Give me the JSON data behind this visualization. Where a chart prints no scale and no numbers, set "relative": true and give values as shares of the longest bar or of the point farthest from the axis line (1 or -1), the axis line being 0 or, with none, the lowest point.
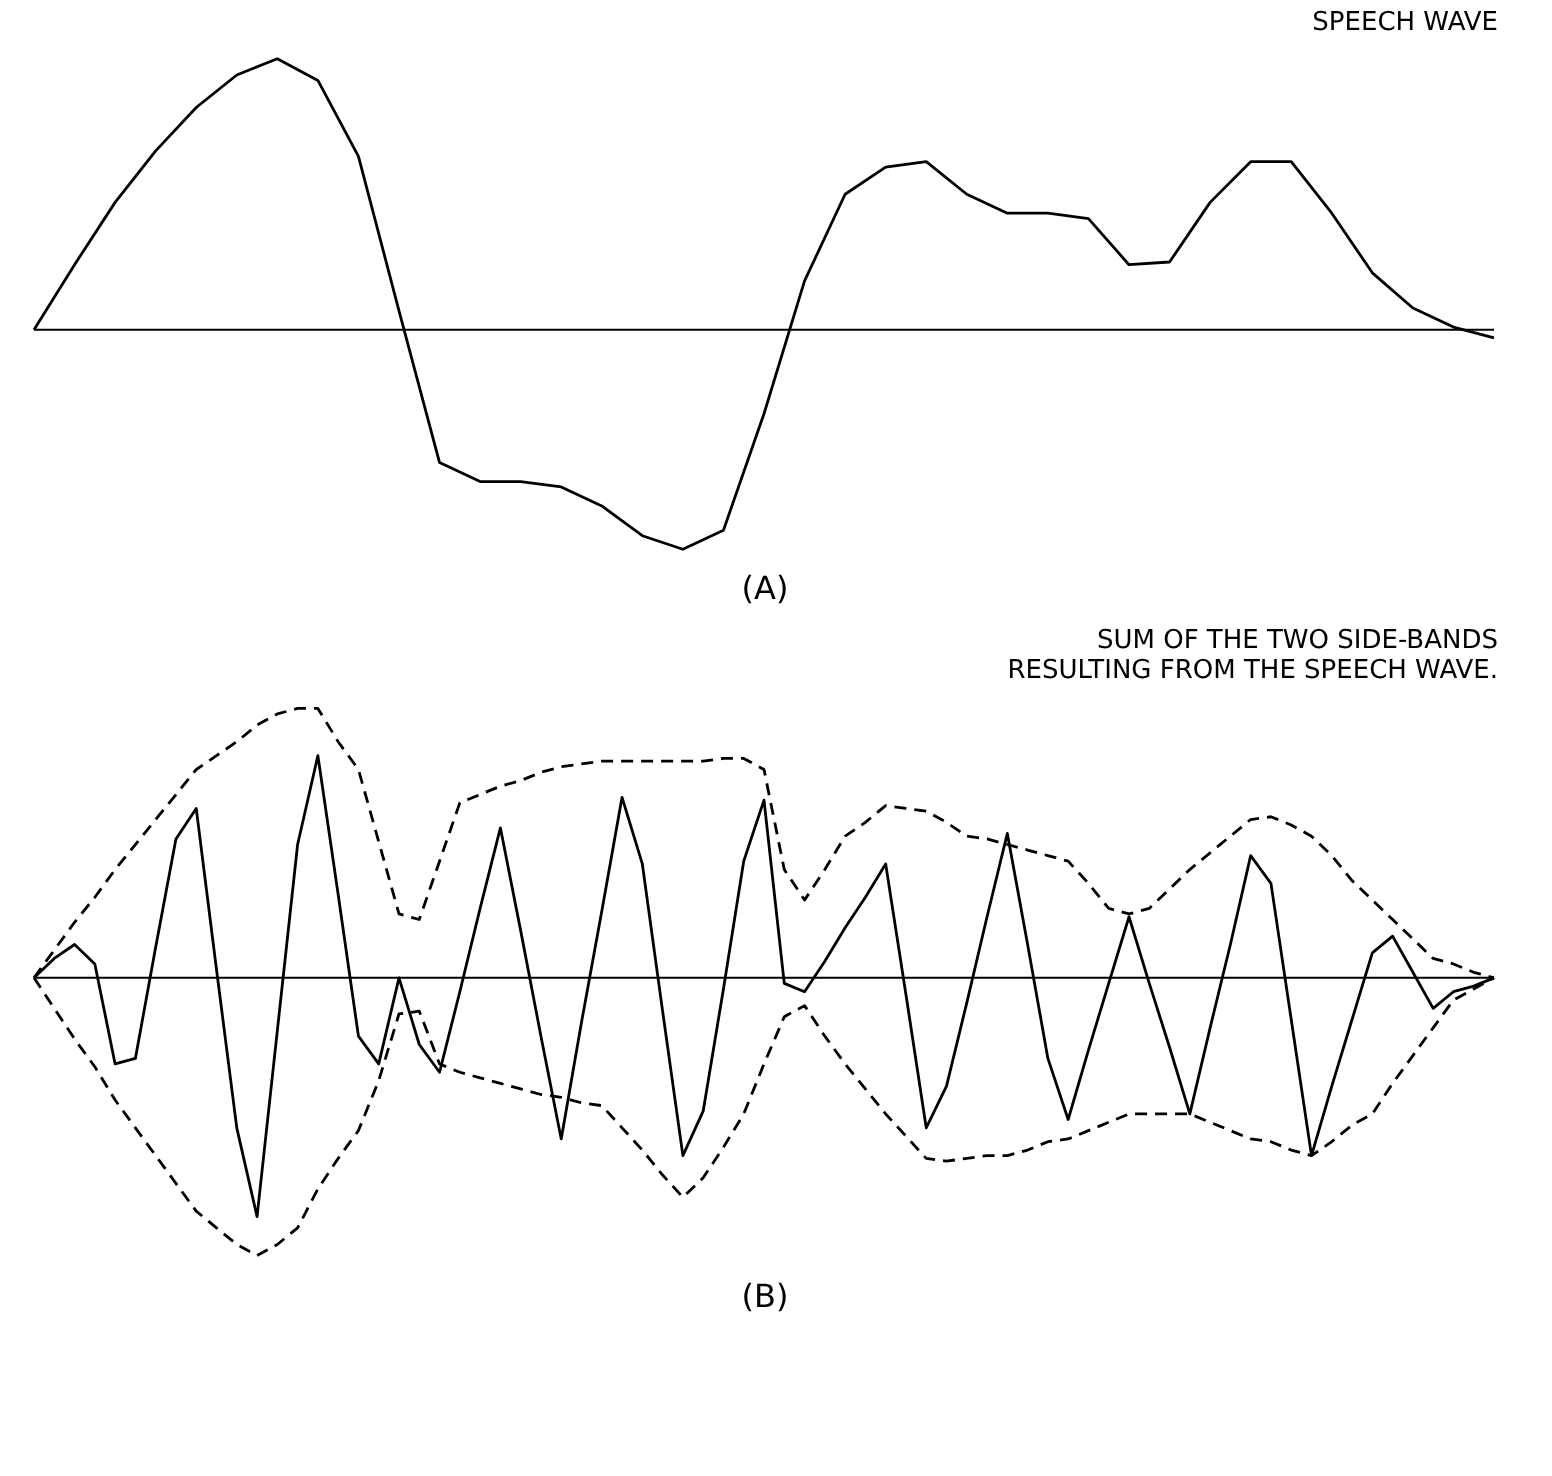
{
  "chart_data": [
    {
      "type": "line",
      "relative": true,
      "title": "SPEECH WAVE",
      "xlabel": "(A)",
      "line_style": "solid",
      "categories": [
        null,
        null,
        null,
        null,
        null,
        null,
        null,
        null,
        null,
        null,
        null,
        null,
        null,
        null,
        null,
        null,
        null,
        null,
        null,
        null,
        null,
        null,
        null,
        null,
        null,
        null,
        null,
        null,
        null,
        null,
        null,
        null,
        null,
        null,
        null,
        null,
        null
      ],
      "series": [
        {
          "color": "#000000",
          "values": [
            0,
            0.24,
            0.47,
            0.66,
            0.82,
            0.94,
            1.0,
            0.92,
            0.64,
            0.07,
            -0.49,
            -0.56,
            -0.56,
            -0.58,
            -0.65,
            -0.76,
            -0.81,
            -0.74,
            -0.31,
            0.18,
            0.5,
            0.6,
            0.62,
            0.5,
            0.43,
            0.43,
            0.41,
            0.24,
            0.25,
            0.47,
            0.62,
            0.62,
            0.43,
            0.21,
            0.08,
            0.01,
            -0.03
          ]
        }
      ]
    },
    {
      "type": "line",
      "relative": true,
      "title": "SUM OF THE TWO SIDE-BANDS\nRESULTING FROM THE SPEECH WAVE.",
      "xlabel": "(B)",
      "categories": [
        null,
        null,
        null,
        null,
        null,
        null,
        null,
        null,
        null,
        null,
        null,
        null,
        null,
        null,
        null,
        null,
        null,
        null,
        null,
        null,
        null,
        null,
        null,
        null,
        null,
        null,
        null,
        null,
        null,
        null,
        null,
        null,
        null,
        null,
        null,
        null,
        null,
        null,
        null,
        null,
        null,
        null,
        null,
        null,
        null,
        null,
        null,
        null,
        null,
        null,
        null,
        null,
        null,
        null,
        null,
        null,
        null,
        null,
        null,
        null,
        null,
        null,
        null,
        null,
        null,
        null,
        null,
        null,
        null,
        null,
        null,
        null,
        null
      ],
      "series": [
        {
          "color": "#000000",
          "line_style": "solid",
          "values": [
            0,
            0.07,
            0.12,
            0.05,
            -0.31,
            -0.29,
            0.11,
            0.5,
            0.61,
            0.03,
            -0.54,
            -0.86,
            -0.19,
            0.48,
            0.8,
            0.3,
            -0.21,
            -0.31,
            0,
            -0.24,
            -0.34,
            -0.05,
            0.25,
            0.54,
            0.17,
            -0.21,
            -0.58,
            -0.16,
            0.24,
            0.65,
            0.41,
            -0.12,
            -0.64,
            -0.48,
            -0.04,
            0.42,
            0.64,
            -0.02,
            -0.05,
            0.06,
            0.18,
            0.29,
            0.41,
            -0.06,
            -0.54,
            -0.39,
            -0.09,
            0.22,
            0.52,
            0.12,
            -0.29,
            -0.51,
            -0.26,
            -0.02,
            0.22,
            -0.02,
            -0.25,
            -0.49,
            -0.18,
            0.12,
            0.44,
            0.34,
            -0.15,
            -0.64,
            -0.39,
            -0.15,
            0.09,
            0.15,
            0.02,
            -0.11,
            -0.05,
            -0.03,
            0
          ]
        },
        {
          "color": "#000000",
          "line_style": "dashed",
          "values": [
            0,
            0.1,
            0.2,
            0.29,
            0.39,
            0.48,
            0.57,
            0.66,
            0.75,
            0.8,
            0.85,
            0.91,
            0.95,
            0.97,
            0.97,
            0.85,
            0.75,
            0.49,
            0.23,
            0.21,
            0.42,
            0.63,
            0.66,
            0.69,
            0.71,
            0.74,
            0.76,
            0.77,
            0.78,
            0.78,
            0.78,
            0.78,
            0.78,
            0.78,
            0.79,
            0.79,
            0.75,
            0.39,
            0.28,
            0.39,
            0.51,
            0.56,
            0.62,
            0.61,
            0.6,
            0.56,
            0.51,
            0.5,
            0.48,
            0.46,
            0.44,
            0.42,
            0.34,
            0.25,
            0.23,
            0.25,
            0.32,
            0.39,
            0.45,
            0.51,
            0.57,
            0.58,
            0.55,
            0.51,
            0.44,
            0.35,
            0.28,
            0.21,
            0.14,
            0.07,
            0.05,
            0.02,
            0
          ]
        },
        {
          "color": "#000000",
          "line_style": "dashed",
          "values": [
            0,
            -0.11,
            -0.22,
            -0.32,
            -0.44,
            -0.54,
            -0.64,
            -0.74,
            -0.84,
            -0.9,
            -0.96,
            -1.0,
            -0.96,
            -0.9,
            -0.76,
            -0.65,
            -0.55,
            -0.37,
            -0.13,
            -0.12,
            -0.31,
            -0.34,
            -0.36,
            -0.38,
            -0.4,
            -0.42,
            -0.43,
            -0.45,
            -0.46,
            -0.54,
            -0.62,
            -0.71,
            -0.79,
            -0.72,
            -0.61,
            -0.49,
            -0.31,
            -0.14,
            -0.1,
            -0.21,
            -0.31,
            -0.4,
            -0.49,
            -0.57,
            -0.65,
            -0.66,
            -0.65,
            -0.64,
            -0.64,
            -0.62,
            -0.59,
            -0.58,
            -0.55,
            -0.52,
            -0.49,
            -0.49,
            -0.49,
            -0.49,
            -0.52,
            -0.55,
            -0.58,
            -0.59,
            -0.62,
            -0.64,
            -0.59,
            -0.53,
            -0.49,
            -0.38,
            -0.28,
            -0.18,
            -0.08,
            -0.04,
            0
          ]
        }
      ]
    }
  ]
}
